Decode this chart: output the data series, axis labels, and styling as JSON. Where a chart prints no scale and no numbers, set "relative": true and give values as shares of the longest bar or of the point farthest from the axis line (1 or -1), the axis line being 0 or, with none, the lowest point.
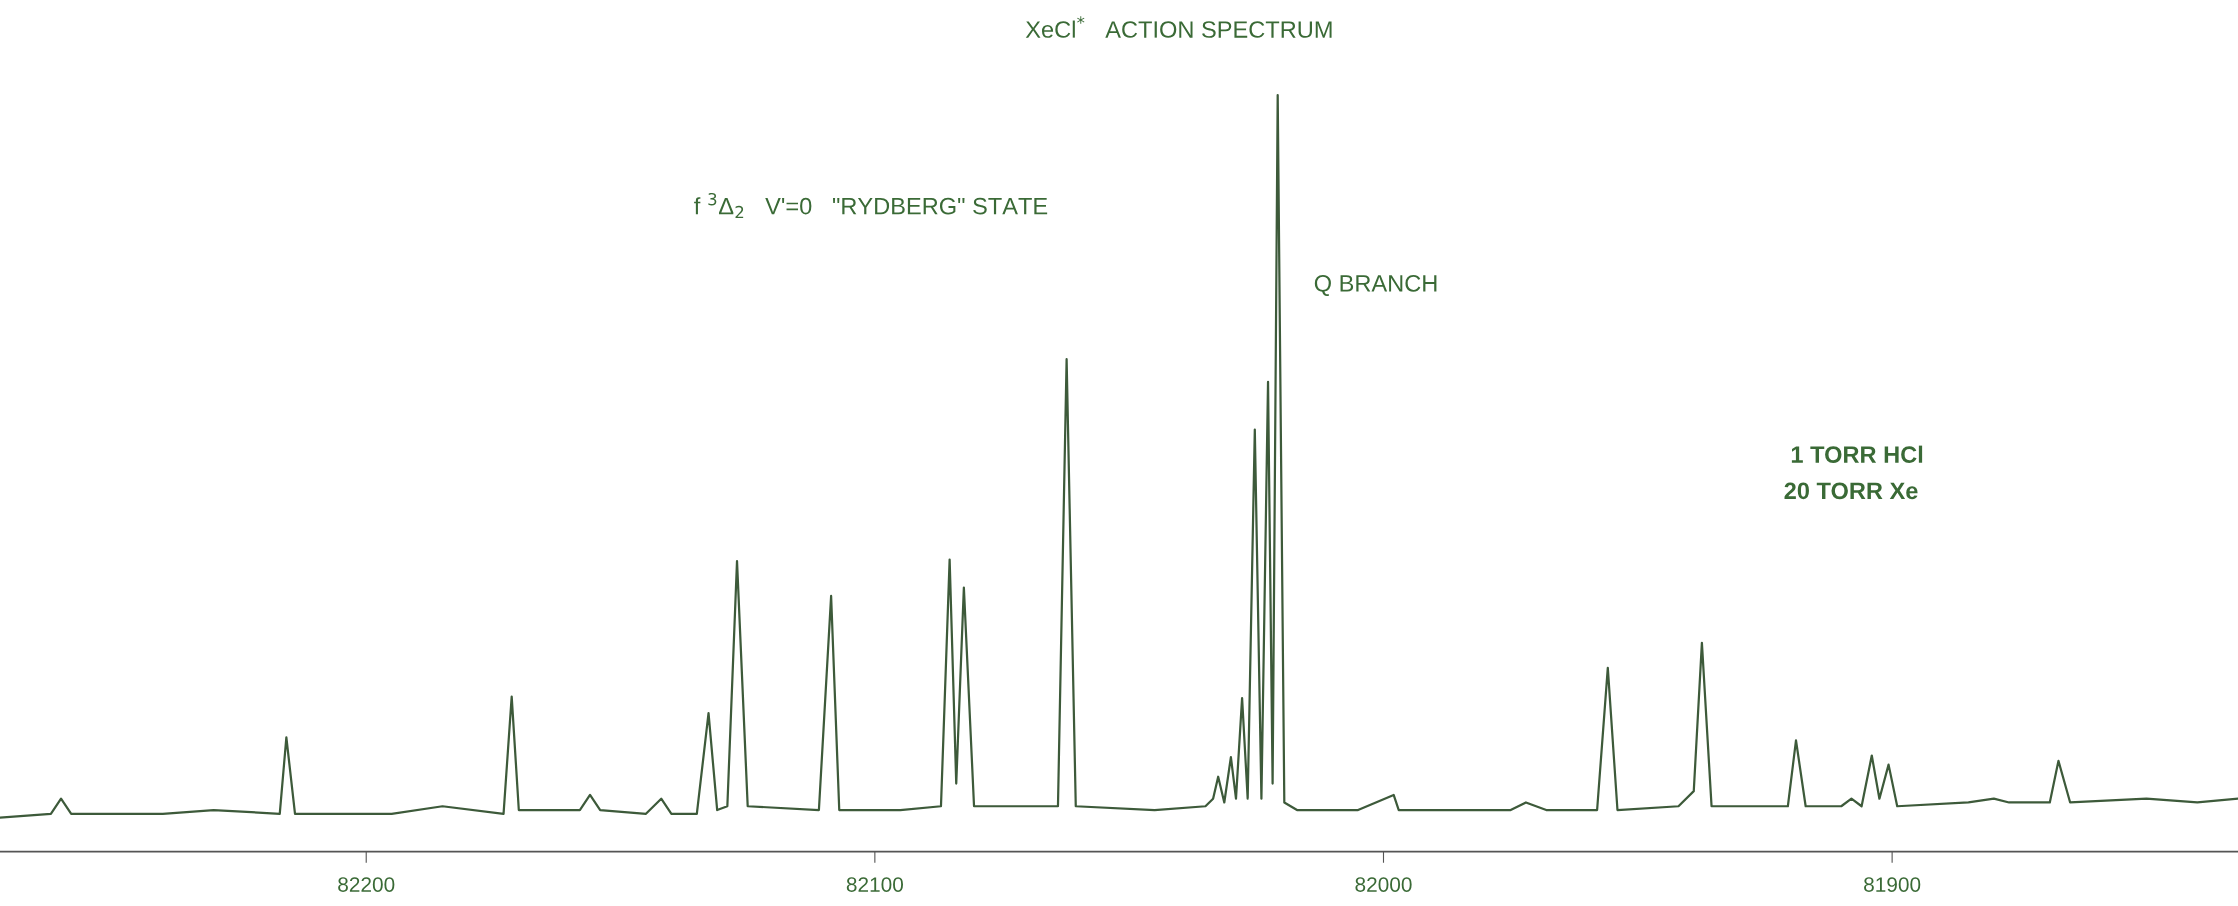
{
  "chart_data": {
    "type": "line",
    "title": "XeCl$^{*}$   ACTION SPECTRUM",
    "relative": true,
    "annotations": [
      "f $^{3}$Δ$_{2}$   V'=0   \"RYDBERG\" STATE",
      "Q BRANCH",
      "1 TORR HCl",
      "20 TORR Xe"
    ],
    "xlim": [
      82272,
      81832
    ],
    "xticks": [
      82200,
      82100,
      82000,
      81900
    ],
    "grid": false,
    "marker": "none",
    "line_style": "solid",
    "series": [
      {
        "color": "#3d5a3a",
        "x": [
          82272,
          82262,
          82260,
          82258,
          82240,
          82230,
          82217,
          82215.7,
          82214,
          82195,
          82185,
          82173,
          82171.4,
          82170,
          82158,
          82156,
          82154,
          82145,
          82142,
          82140,
          82135,
          82132.7,
          82131,
          82129,
          82127.1,
          82125,
          82111,
          82108.6,
          82107,
          82095,
          82087,
          82085.3,
          82084,
          82082.5,
          82080.5,
          82070,
          82064,
          82062.3,
          82060.5,
          82045,
          82035,
          82033.5,
          82032.5,
          82031.3,
          82030,
          82029,
          82027.8,
          82026.7,
          82025.3,
          82024,
          82022.7,
          82021.8,
          82020.8,
          82019.5,
          82017,
          82005,
          81998,
          81997,
          81975,
          81972,
          81968,
          81958,
          81955.9,
          81954,
          81942,
          81939,
          81937.4,
          81935.5,
          81925,
          81920.5,
          81918.9,
          81917,
          81910,
          81908,
          81906,
          81904,
          81902.5,
          81900.7,
          81899,
          81885,
          81880,
          81877,
          81869,
          81867.3,
          81865,
          81850,
          81840,
          81832
        ],
        "values": [
          0.045,
          0.05,
          0.07,
          0.05,
          0.05,
          0.055,
          0.05,
          0.151,
          0.05,
          0.05,
          0.06,
          0.05,
          0.205,
          0.055,
          0.055,
          0.075,
          0.055,
          0.05,
          0.07,
          0.05,
          0.05,
          0.183,
          0.055,
          0.06,
          0.384,
          0.06,
          0.055,
          0.338,
          0.055,
          0.055,
          0.06,
          0.386,
          0.09,
          0.349,
          0.06,
          0.06,
          0.06,
          0.651,
          0.06,
          0.055,
          0.06,
          0.07,
          0.099,
          0.065,
          0.125,
          0.07,
          0.203,
          0.07,
          0.558,
          0.07,
          0.621,
          0.09,
          1.0,
          0.065,
          0.055,
          0.055,
          0.075,
          0.055,
          0.055,
          0.065,
          0.055,
          0.055,
          0.243,
          0.055,
          0.06,
          0.08,
          0.276,
          0.06,
          0.06,
          0.06,
          0.147,
          0.06,
          0.06,
          0.07,
          0.06,
          0.127,
          0.07,
          0.115,
          0.06,
          0.065,
          0.07,
          0.065,
          0.065,
          0.12,
          0.065,
          0.07,
          0.065,
          0.07
        ]
      }
    ]
  }
}
